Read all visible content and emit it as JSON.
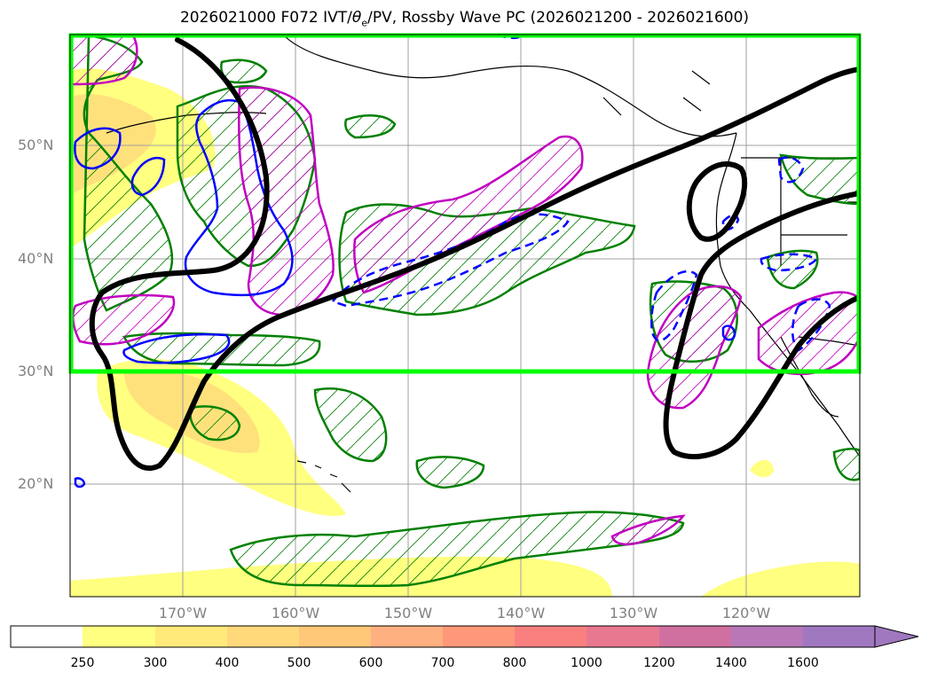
{
  "title_prefix": "2026021000 F072 IVT/",
  "title_theta": "θ",
  "title_sub": "e",
  "title_suffix": "/PV, Rossby Wave PC (2026021200 - 2026021600)",
  "lat_labels": [
    "50°N",
    "40°N",
    "30°N",
    "20°N"
  ],
  "lon_labels": [
    "170°W",
    "160°W",
    "150°W",
    "140°W",
    "130°W",
    "120°W"
  ],
  "colorbar": {
    "ticks": [
      "250",
      "300",
      "400",
      "500",
      "600",
      "700",
      "800",
      "1000",
      "1200",
      "1400",
      "1600"
    ],
    "colors": [
      "#ffffff",
      "#ffff80",
      "#ffea7a",
      "#ffd97a",
      "#ffc878",
      "#ffb080",
      "#ff9878",
      "#fa8080",
      "#e87890",
      "#d070a0",
      "#b878b8",
      "#a078c0"
    ],
    "extend": "max"
  },
  "colors": {
    "region_box": "#00ff00",
    "pv_contour": "#008000",
    "rossby_positive": "#0000ff",
    "rossby_negative": "#0000ff",
    "theta_contour": "#c000c0",
    "jet_contour": "#000000",
    "coastline": "#000000",
    "grid": "#a0a0a0"
  },
  "region_box": {
    "lat_min": 30,
    "lat_max": 60,
    "lon_min": -180,
    "lon_max": -110
  }
}
